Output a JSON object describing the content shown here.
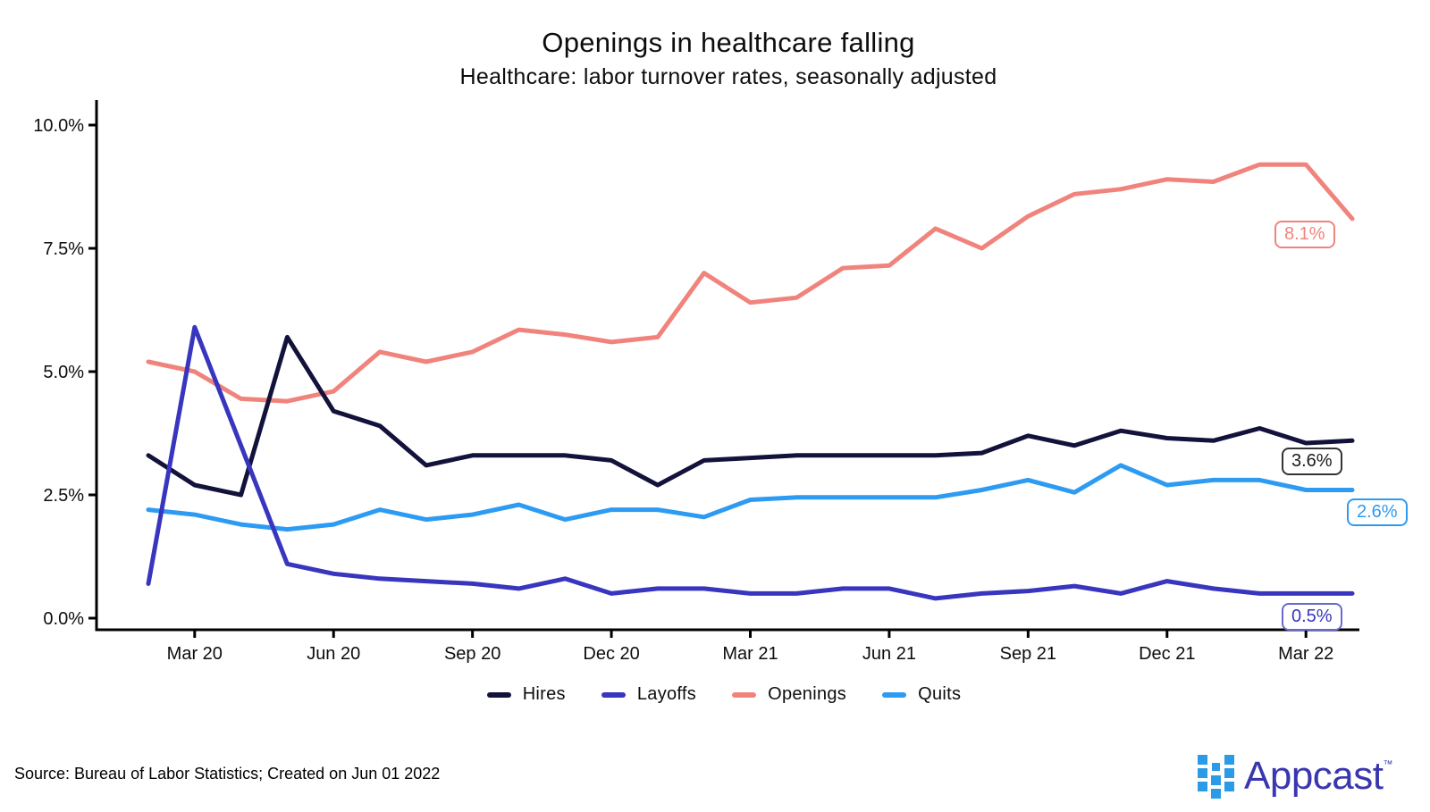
{
  "header": {
    "title": "Openings in healthcare falling",
    "subtitle": "Healthcare: labor turnover rates, seasonally adjusted"
  },
  "chart_data": {
    "type": "line",
    "title": "Openings in healthcare falling",
    "subtitle": "Healthcare: labor turnover rates, seasonally adjusted",
    "grid": false,
    "legend_position": "bottom",
    "ylim": [
      0,
      10
    ],
    "y_ticks": [
      {
        "value": 0,
        "label": "0.0%"
      },
      {
        "value": 2.5,
        "label": "2.5%"
      },
      {
        "value": 5,
        "label": "5.0%"
      },
      {
        "value": 7.5,
        "label": "7.5%"
      },
      {
        "value": 10,
        "label": "10.0%"
      }
    ],
    "x": [
      "Feb 20",
      "Mar 20",
      "Apr 20",
      "May 20",
      "Jun 20",
      "Jul 20",
      "Aug 20",
      "Sep 20",
      "Oct 20",
      "Nov 20",
      "Dec 20",
      "Jan 21",
      "Feb 21",
      "Mar 21",
      "Apr 21",
      "May 21",
      "Jun 21",
      "Jul 21",
      "Aug 21",
      "Sep 21",
      "Oct 21",
      "Nov 21",
      "Dec 21",
      "Jan 22",
      "Feb 22",
      "Mar 22",
      "Apr 22"
    ],
    "x_tick_indices": [
      1,
      4,
      7,
      10,
      13,
      16,
      19,
      22,
      25
    ],
    "x_tick_labels": [
      "Mar 20",
      "Jun 20",
      "Sep 20",
      "Dec 20",
      "Mar 21",
      "Jun 21",
      "Sep 21",
      "Dec 21",
      "Mar 22"
    ],
    "series": [
      {
        "name": "Hires",
        "color": "#13123B",
        "values": [
          3.3,
          2.7,
          2.5,
          5.7,
          4.2,
          3.9,
          3.1,
          3.3,
          3.3,
          3.3,
          3.2,
          2.7,
          3.2,
          3.25,
          3.3,
          3.3,
          3.3,
          3.3,
          3.35,
          3.7,
          3.5,
          3.8,
          3.65,
          3.6,
          3.85,
          3.55,
          3.6
        ]
      },
      {
        "name": "Layoffs",
        "color": "#3835BF",
        "values": [
          0.7,
          5.9,
          3.5,
          1.1,
          0.9,
          0.8,
          0.75,
          0.7,
          0.6,
          0.8,
          0.5,
          0.6,
          0.6,
          0.5,
          0.5,
          0.6,
          0.6,
          0.4,
          0.5,
          0.55,
          0.65,
          0.5,
          0.75,
          0.6,
          0.5,
          0.5,
          0.5
        ]
      },
      {
        "name": "Openings",
        "color": "#F0847D",
        "values": [
          5.2,
          5.0,
          4.45,
          4.4,
          4.6,
          5.4,
          5.2,
          5.4,
          5.85,
          5.75,
          5.6,
          5.7,
          7.0,
          6.4,
          6.5,
          7.1,
          7.15,
          7.9,
          7.5,
          8.15,
          8.6,
          8.7,
          8.9,
          8.85,
          9.2,
          9.2,
          8.1
        ]
      },
      {
        "name": "Quits",
        "color": "#2E9BF2",
        "values": [
          2.2,
          2.1,
          1.9,
          1.8,
          1.9,
          2.2,
          2.0,
          2.1,
          2.3,
          2.0,
          2.2,
          2.2,
          2.05,
          2.4,
          2.45,
          2.45,
          2.45,
          2.45,
          2.6,
          2.8,
          2.55,
          3.1,
          2.7,
          2.8,
          2.8,
          2.6,
          2.6
        ]
      }
    ],
    "draw_order": [
      "Openings",
      "Quits",
      "Hires",
      "Layoffs"
    ],
    "end_labels": {
      "openings": "8.1%",
      "hires": "3.6%",
      "quits": "2.6%",
      "layoffs": "0.5%"
    }
  },
  "legend": {
    "items": [
      {
        "label": "Hires",
        "color": "#13123B"
      },
      {
        "label": "Layoffs",
        "color": "#3835BF"
      },
      {
        "label": "Openings",
        "color": "#F0847D"
      },
      {
        "label": "Quits",
        "color": "#2E9BF2"
      }
    ]
  },
  "footer": {
    "source": "Source: Bureau of Labor Statistics; Created on Jun 01 2022"
  },
  "logo": {
    "text": "Appcast",
    "trademark": "™",
    "text_color": "#3A37AE",
    "square_color": "#2B9BE8"
  }
}
